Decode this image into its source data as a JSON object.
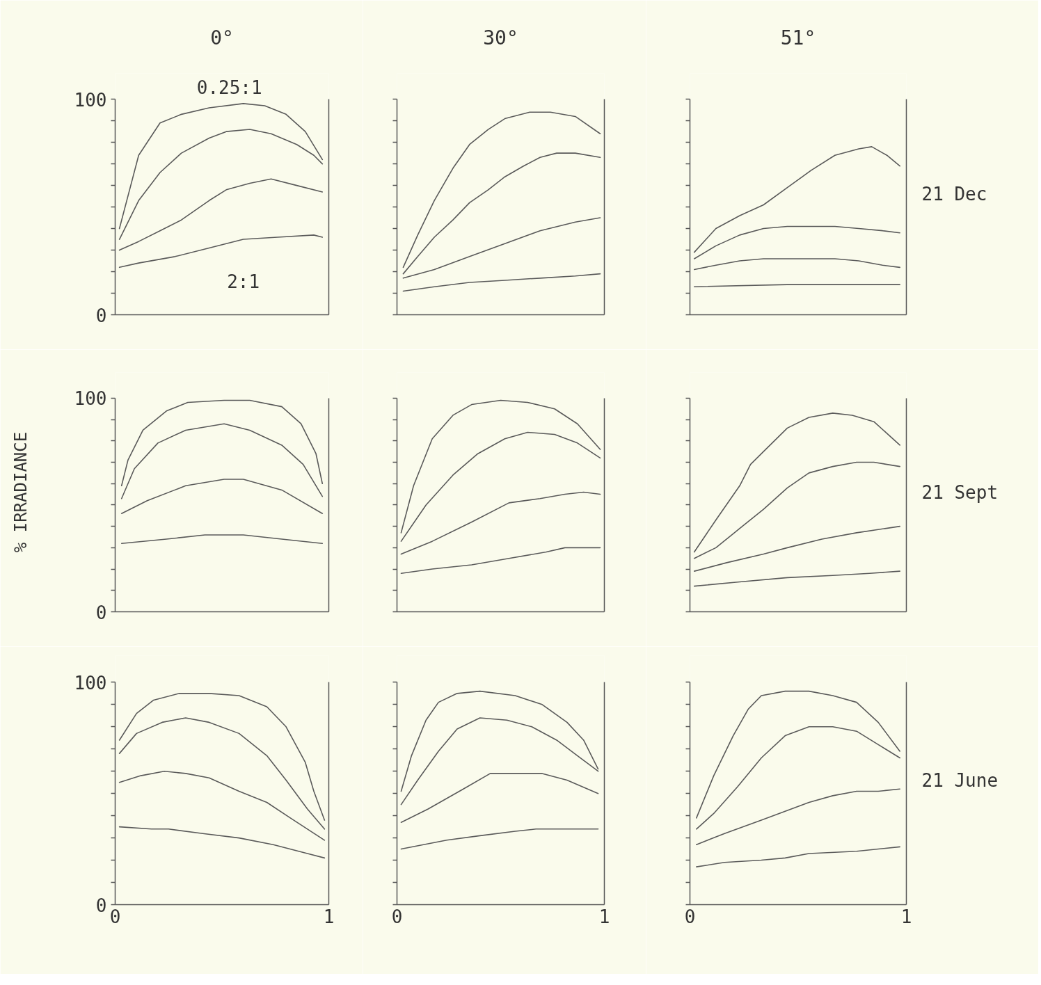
{
  "chart_data": [
    {
      "type": "line",
      "title": "0°",
      "xlim": [
        0,
        1
      ],
      "ylim": [
        0,
        100
      ],
      "xticks": [
        0,
        1
      ],
      "yticks": [
        0,
        {
          "value": 10,
          "label": null
        },
        {
          "value": 20,
          "label": null
        },
        {
          "value": 30,
          "label": null
        },
        {
          "value": 40,
          "label": null
        },
        {
          "value": 50,
          "label": null
        },
        {
          "value": 60,
          "label": null
        },
        {
          "value": 70,
          "label": null
        },
        {
          "value": 80,
          "label": null
        },
        {
          "value": 90,
          "label": null
        },
        100
      ],
      "tick_labels": "y",
      "series": [
        {
          "name": "0.25:1",
          "color": "#5a5a5a",
          "x": [
            0.02,
            0.11,
            0.21,
            0.31,
            0.44,
            0.6,
            0.7,
            0.8,
            0.89,
            0.97
          ],
          "values": [
            40,
            74,
            89,
            93,
            96,
            98,
            97,
            93,
            85,
            72
          ]
        },
        {
          "color": "#5a5a5a",
          "x": [
            0.02,
            0.11,
            0.21,
            0.31,
            0.44,
            0.52,
            0.63,
            0.73,
            0.85,
            0.93,
            0.97
          ],
          "values": [
            35,
            53,
            66,
            75,
            82,
            85,
            86,
            84,
            79,
            74,
            70
          ]
        },
        {
          "color": "#5a5a5a",
          "x": [
            0.02,
            0.11,
            0.21,
            0.31,
            0.44,
            0.52,
            0.63,
            0.73,
            0.85,
            0.97
          ],
          "values": [
            30,
            34,
            39,
            44,
            53,
            58,
            61,
            63,
            60,
            57
          ]
        },
        {
          "name": "2:1",
          "color": "#5a5a5a",
          "x": [
            0.02,
            0.11,
            0.28,
            0.44,
            0.6,
            0.76,
            0.93,
            0.97
          ],
          "values": [
            22,
            24,
            27,
            31,
            35,
            36,
            37,
            36
          ]
        }
      ]
    },
    {
      "type": "line",
      "title": "30°",
      "xlim": [
        0,
        1
      ],
      "ylim": [
        0,
        100
      ],
      "xticks": [
        0,
        1
      ],
      "yticks": [
        0,
        {
          "value": 10,
          "label": null
        },
        {
          "value": 20,
          "label": null
        },
        {
          "value": 30,
          "label": null
        },
        {
          "value": 40,
          "label": null
        },
        {
          "value": 50,
          "label": null
        },
        {
          "value": 60,
          "label": null
        },
        {
          "value": 70,
          "label": null
        },
        {
          "value": 80,
          "label": null
        },
        {
          "value": 90,
          "label": null
        },
        100
      ],
      "tick_labels": false,
      "series": [
        {
          "color": "#5a5a5a",
          "x": [
            0.03,
            0.1,
            0.18,
            0.27,
            0.35,
            0.44,
            0.52,
            0.64,
            0.74,
            0.86,
            0.98
          ],
          "values": [
            22,
            37,
            53,
            68,
            79,
            86,
            91,
            94,
            94,
            92,
            84
          ]
        },
        {
          "color": "#5a5a5a",
          "x": [
            0.03,
            0.1,
            0.18,
            0.27,
            0.35,
            0.44,
            0.52,
            0.61,
            0.69,
            0.77,
            0.86,
            0.98
          ],
          "values": [
            19,
            27,
            36,
            44,
            52,
            58,
            64,
            69,
            73,
            75,
            75,
            73
          ]
        },
        {
          "color": "#5a5a5a",
          "x": [
            0.03,
            0.18,
            0.35,
            0.52,
            0.69,
            0.86,
            0.98
          ],
          "values": [
            17,
            21,
            27,
            33,
            39,
            43,
            45
          ]
        },
        {
          "color": "#5a5a5a",
          "x": [
            0.03,
            0.18,
            0.35,
            0.52,
            0.69,
            0.86,
            0.98
          ],
          "values": [
            11,
            13,
            15,
            16,
            17,
            18,
            19
          ]
        }
      ]
    },
    {
      "type": "line",
      "title": "51°",
      "annotations": [
        "21 Dec"
      ],
      "xlim": [
        0,
        1
      ],
      "ylim": [
        0,
        100
      ],
      "xticks": [
        0,
        1
      ],
      "yticks": [
        0,
        {
          "value": 10,
          "label": null
        },
        {
          "value": 20,
          "label": null
        },
        {
          "value": 30,
          "label": null
        },
        {
          "value": 40,
          "label": null
        },
        {
          "value": 50,
          "label": null
        },
        {
          "value": 60,
          "label": null
        },
        {
          "value": 70,
          "label": null
        },
        {
          "value": 80,
          "label": null
        },
        {
          "value": 90,
          "label": null
        },
        100
      ],
      "tick_labels": false,
      "series": [
        {
          "color": "#5a5a5a",
          "x": [
            0.02,
            0.12,
            0.23,
            0.34,
            0.45,
            0.56,
            0.67,
            0.78,
            0.84,
            0.91,
            0.97
          ],
          "values": [
            29,
            40,
            46,
            51,
            59,
            67,
            74,
            77,
            78,
            74,
            69
          ]
        },
        {
          "color": "#5a5a5a",
          "x": [
            0.02,
            0.12,
            0.23,
            0.34,
            0.45,
            0.56,
            0.67,
            0.78,
            0.89,
            0.97
          ],
          "values": [
            26,
            32,
            37,
            40,
            41,
            41,
            41,
            40,
            39,
            38
          ]
        },
        {
          "color": "#5a5a5a",
          "x": [
            0.02,
            0.12,
            0.23,
            0.34,
            0.45,
            0.56,
            0.67,
            0.78,
            0.89,
            0.97
          ],
          "values": [
            21,
            23,
            25,
            26,
            26,
            26,
            26,
            25,
            23,
            22
          ]
        },
        {
          "color": "#5a5a5a",
          "x": [
            0.02,
            0.45,
            0.67,
            0.97
          ],
          "values": [
            13,
            14,
            14,
            14
          ]
        }
      ]
    },
    {
      "type": "line",
      "ylabel": "% IRRADIANCE",
      "xlim": [
        0,
        1
      ],
      "ylim": [
        0,
        100
      ],
      "xticks": [
        0,
        1
      ],
      "yticks": [
        0,
        {
          "value": 10,
          "label": null
        },
        {
          "value": 20,
          "label": null
        },
        {
          "value": 30,
          "label": null
        },
        {
          "value": 40,
          "label": null
        },
        {
          "value": 50,
          "label": null
        },
        {
          "value": 60,
          "label": null
        },
        {
          "value": 70,
          "label": null
        },
        {
          "value": 80,
          "label": null
        },
        {
          "value": 90,
          "label": null
        },
        100
      ],
      "tick_labels": "y",
      "series": [
        {
          "color": "#5a5a5a",
          "x": [
            0.03,
            0.06,
            0.13,
            0.24,
            0.34,
            0.51,
            0.63,
            0.78,
            0.87,
            0.94,
            0.97
          ],
          "values": [
            59,
            71,
            85,
            94,
            98,
            99,
            99,
            96,
            88,
            74,
            60
          ]
        },
        {
          "color": "#5a5a5a",
          "x": [
            0.03,
            0.09,
            0.2,
            0.33,
            0.51,
            0.63,
            0.78,
            0.88,
            0.97
          ],
          "values": [
            53,
            67,
            79,
            85,
            88,
            85,
            78,
            69,
            54
          ]
        },
        {
          "color": "#5a5a5a",
          "x": [
            0.03,
            0.15,
            0.33,
            0.51,
            0.6,
            0.78,
            0.97
          ],
          "values": [
            46,
            52,
            59,
            62,
            62,
            57,
            46
          ]
        },
        {
          "color": "#5a5a5a",
          "x": [
            0.03,
            0.24,
            0.42,
            0.6,
            0.78,
            0.97
          ],
          "values": [
            32,
            34,
            36,
            36,
            34,
            32
          ]
        }
      ]
    },
    {
      "type": "line",
      "xlim": [
        0,
        1
      ],
      "ylim": [
        0,
        100
      ],
      "xticks": [
        0,
        1
      ],
      "yticks": [
        0,
        {
          "value": 10,
          "label": null
        },
        {
          "value": 20,
          "label": null
        },
        {
          "value": 30,
          "label": null
        },
        {
          "value": 40,
          "label": null
        },
        {
          "value": 50,
          "label": null
        },
        {
          "value": 60,
          "label": null
        },
        {
          "value": 70,
          "label": null
        },
        {
          "value": 80,
          "label": null
        },
        {
          "value": 90,
          "label": null
        },
        100
      ],
      "tick_labels": false,
      "series": [
        {
          "color": "#5a5a5a",
          "x": [
            0.02,
            0.08,
            0.17,
            0.27,
            0.36,
            0.5,
            0.63,
            0.76,
            0.87,
            0.98
          ],
          "values": [
            37,
            59,
            81,
            92,
            97,
            99,
            98,
            95,
            88,
            76
          ]
        },
        {
          "color": "#5a5a5a",
          "x": [
            0.02,
            0.14,
            0.27,
            0.39,
            0.52,
            0.63,
            0.76,
            0.87,
            0.98
          ],
          "values": [
            33,
            50,
            64,
            74,
            81,
            84,
            83,
            79,
            72
          ]
        },
        {
          "color": "#5a5a5a",
          "x": [
            0.02,
            0.17,
            0.36,
            0.54,
            0.69,
            0.81,
            0.9,
            0.98
          ],
          "values": [
            27,
            33,
            42,
            51,
            53,
            55,
            56,
            55
          ]
        },
        {
          "color": "#5a5a5a",
          "x": [
            0.02,
            0.17,
            0.36,
            0.54,
            0.72,
            0.81,
            0.98
          ],
          "values": [
            18,
            20,
            22,
            25,
            28,
            30,
            30
          ]
        }
      ]
    },
    {
      "type": "line",
      "annotations": [
        "21 Sept"
      ],
      "xlim": [
        0,
        1
      ],
      "ylim": [
        0,
        100
      ],
      "xticks": [
        0,
        1
      ],
      "yticks": [
        0,
        {
          "value": 10,
          "label": null
        },
        {
          "value": 20,
          "label": null
        },
        {
          "value": 30,
          "label": null
        },
        {
          "value": 40,
          "label": null
        },
        {
          "value": 50,
          "label": null
        },
        {
          "value": 60,
          "label": null
        },
        {
          "value": 70,
          "label": null
        },
        {
          "value": 80,
          "label": null
        },
        {
          "value": 90,
          "label": null
        },
        100
      ],
      "tick_labels": false,
      "series": [
        {
          "color": "#5a5a5a",
          "x": [
            0.02,
            0.12,
            0.23,
            0.28,
            0.34,
            0.45,
            0.55,
            0.66,
            0.75,
            0.85,
            0.97
          ],
          "values": [
            28,
            43,
            59,
            69,
            75,
            86,
            91,
            93,
            92,
            89,
            78
          ]
        },
        {
          "color": "#5a5a5a",
          "x": [
            0.02,
            0.12,
            0.23,
            0.34,
            0.45,
            0.55,
            0.66,
            0.77,
            0.85,
            0.97
          ],
          "values": [
            25,
            30,
            39,
            48,
            58,
            65,
            68,
            70,
            70,
            68
          ]
        },
        {
          "color": "#5a5a5a",
          "x": [
            0.02,
            0.17,
            0.34,
            0.45,
            0.61,
            0.77,
            0.97
          ],
          "values": [
            19,
            23,
            27,
            30,
            34,
            37,
            40
          ]
        },
        {
          "color": "#5a5a5a",
          "x": [
            0.02,
            0.23,
            0.45,
            0.66,
            0.83,
            0.97
          ],
          "values": [
            12,
            14,
            16,
            17,
            18,
            19
          ]
        }
      ]
    },
    {
      "type": "line",
      "xlim": [
        0,
        1
      ],
      "ylim": [
        0,
        100
      ],
      "xticks": [
        0,
        1
      ],
      "yticks": [
        0,
        {
          "value": 10,
          "label": null
        },
        {
          "value": 20,
          "label": null
        },
        {
          "value": 30,
          "label": null
        },
        {
          "value": 40,
          "label": null
        },
        {
          "value": 50,
          "label": null
        },
        {
          "value": 60,
          "label": null
        },
        {
          "value": 70,
          "label": null
        },
        {
          "value": 80,
          "label": null
        },
        {
          "value": 90,
          "label": null
        },
        100
      ],
      "series": [
        {
          "color": "#5a5a5a",
          "x": [
            0.02,
            0.1,
            0.18,
            0.3,
            0.44,
            0.58,
            0.71,
            0.8,
            0.89,
            0.93,
            0.98
          ],
          "values": [
            74,
            86,
            92,
            95,
            95,
            94,
            89,
            80,
            64,
            51,
            38
          ]
        },
        {
          "color": "#5a5a5a",
          "x": [
            0.02,
            0.1,
            0.22,
            0.33,
            0.44,
            0.58,
            0.71,
            0.8,
            0.9,
            0.98
          ],
          "values": [
            68,
            77,
            82,
            84,
            82,
            77,
            67,
            56,
            43,
            34
          ]
        },
        {
          "color": "#5a5a5a",
          "x": [
            0.02,
            0.12,
            0.23,
            0.33,
            0.44,
            0.58,
            0.71,
            0.82,
            0.98
          ],
          "values": [
            55,
            58,
            60,
            59,
            57,
            51,
            46,
            39,
            29
          ]
        },
        {
          "color": "#5a5a5a",
          "x": [
            0.02,
            0.17,
            0.25,
            0.41,
            0.58,
            0.74,
            0.9,
            0.98
          ],
          "values": [
            35,
            34,
            34,
            32,
            30,
            27,
            23,
            21
          ]
        }
      ]
    },
    {
      "type": "line",
      "xlim": [
        0,
        1
      ],
      "ylim": [
        0,
        100
      ],
      "xticks": [
        0,
        1
      ],
      "yticks": [
        0,
        {
          "value": 10,
          "label": null
        },
        {
          "value": 20,
          "label": null
        },
        {
          "value": 30,
          "label": null
        },
        {
          "value": 40,
          "label": null
        },
        {
          "value": 50,
          "label": null
        },
        {
          "value": 60,
          "label": null
        },
        {
          "value": 70,
          "label": null
        },
        {
          "value": 80,
          "label": null
        },
        {
          "value": 90,
          "label": null
        },
        100
      ],
      "tick_labels": "x",
      "series": [
        {
          "color": "#5a5a5a",
          "x": [
            0.02,
            0.07,
            0.14,
            0.2,
            0.29,
            0.4,
            0.57,
            0.7,
            0.82,
            0.9,
            0.97
          ],
          "values": [
            51,
            67,
            83,
            91,
            95,
            96,
            94,
            90,
            82,
            74,
            61
          ]
        },
        {
          "color": "#5a5a5a",
          "x": [
            0.02,
            0.1,
            0.2,
            0.29,
            0.4,
            0.53,
            0.65,
            0.77,
            0.87,
            0.97
          ],
          "values": [
            45,
            56,
            69,
            79,
            84,
            83,
            80,
            74,
            67,
            60
          ]
        },
        {
          "color": "#5a5a5a",
          "x": [
            0.02,
            0.15,
            0.32,
            0.45,
            0.57,
            0.7,
            0.82,
            0.97
          ],
          "values": [
            37,
            43,
            52,
            59,
            59,
            59,
            56,
            50
          ]
        },
        {
          "color": "#5a5a5a",
          "x": [
            0.02,
            0.24,
            0.4,
            0.57,
            0.67,
            0.82,
            0.97
          ],
          "values": [
            25,
            29,
            31,
            33,
            34,
            34,
            34
          ]
        }
      ]
    },
    {
      "type": "line",
      "annotations": [
        "21 June"
      ],
      "xlim": [
        0,
        1
      ],
      "ylim": [
        0,
        100
      ],
      "xticks": [
        0,
        1
      ],
      "yticks": [
        0,
        {
          "value": 10,
          "label": null
        },
        {
          "value": 20,
          "label": null
        },
        {
          "value": 30,
          "label": null
        },
        {
          "value": 40,
          "label": null
        },
        {
          "value": 50,
          "label": null
        },
        {
          "value": 60,
          "label": null
        },
        {
          "value": 70,
          "label": null
        },
        {
          "value": 80,
          "label": null
        },
        {
          "value": 90,
          "label": null
        },
        100
      ],
      "tick_labels": "x",
      "series": [
        {
          "color": "#5a5a5a",
          "x": [
            0.03,
            0.11,
            0.2,
            0.27,
            0.33,
            0.44,
            0.55,
            0.66,
            0.77,
            0.87,
            0.97
          ],
          "values": [
            39,
            58,
            76,
            88,
            94,
            96,
            96,
            94,
            91,
            82,
            69
          ]
        },
        {
          "color": "#5a5a5a",
          "x": [
            0.03,
            0.11,
            0.22,
            0.33,
            0.44,
            0.55,
            0.66,
            0.77,
            0.87,
            0.97
          ],
          "values": [
            34,
            41,
            53,
            66,
            76,
            80,
            80,
            78,
            72,
            66
          ]
        },
        {
          "color": "#5a5a5a",
          "x": [
            0.03,
            0.16,
            0.33,
            0.44,
            0.55,
            0.66,
            0.77,
            0.87,
            0.97
          ],
          "values": [
            27,
            32,
            38,
            42,
            46,
            49,
            51,
            51,
            52
          ]
        },
        {
          "color": "#5a5a5a",
          "x": [
            0.03,
            0.16,
            0.33,
            0.44,
            0.55,
            0.77,
            0.97
          ],
          "values": [
            17,
            19,
            20,
            21,
            23,
            24,
            26
          ]
        }
      ]
    }
  ]
}
